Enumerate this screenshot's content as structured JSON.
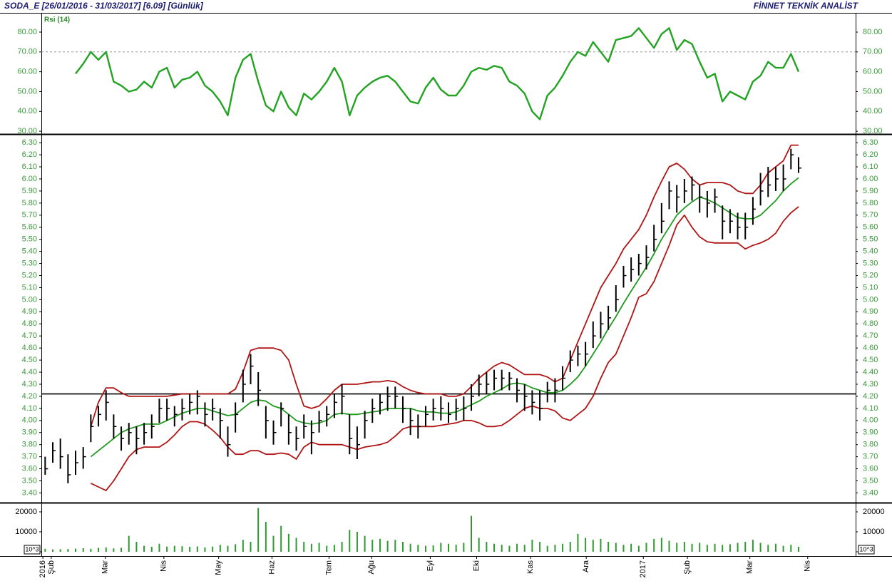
{
  "header": {
    "left": "SODA_E [26/01/2016 - 31/03/2017] [6.09] [Günlük]",
    "right": "FİNNET TEKNİK ANALİST"
  },
  "chart_data": [
    {
      "type": "line",
      "label": "Rsi (14)",
      "ylim": [
        28.6,
        89.7
      ],
      "reference_line": 70,
      "yticks": [
        {
          "value": 30,
          "label": "30.00"
        },
        {
          "value": 40,
          "label": "40.00"
        },
        {
          "value": 50,
          "label": "50.00"
        },
        {
          "value": 60,
          "label": "60.00"
        },
        {
          "value": 70,
          "label": "70.00"
        },
        {
          "value": 80,
          "label": "80.00"
        }
      ],
      "series": [
        {
          "color": "#22a322",
          "values": [
            null,
            null,
            null,
            null,
            59,
            64,
            70,
            66,
            70,
            55,
            53,
            50,
            51,
            55,
            52,
            60,
            62,
            52,
            56,
            57,
            60,
            53,
            50,
            45,
            38,
            57,
            66,
            69,
            55,
            43,
            40,
            50,
            42,
            38,
            49,
            46,
            50,
            55,
            62,
            55,
            38,
            48,
            52,
            55,
            57,
            58,
            55,
            50,
            45,
            44,
            52,
            57,
            51,
            48,
            48,
            53,
            60,
            62,
            61,
            63,
            62,
            55,
            53,
            49,
            40,
            36,
            48,
            52,
            58,
            65,
            70,
            68,
            75,
            70,
            65,
            76,
            77,
            78,
            82,
            77,
            72,
            79,
            82,
            71,
            76,
            74,
            65,
            57,
            59,
            45,
            50,
            48,
            46,
            55,
            58,
            65,
            62,
            62,
            69,
            60
          ]
        }
      ]
    },
    {
      "type": "hlc",
      "color": "#000000",
      "ylim": [
        3.32,
        6.36
      ],
      "reference_line": 4.22,
      "yticks": [
        {
          "value": 3.4,
          "label": "3.40"
        },
        {
          "value": 3.5,
          "label": "3.50"
        },
        {
          "value": 3.6,
          "label": "3.60"
        },
        {
          "value": 3.7,
          "label": "3.70"
        },
        {
          "value": 3.8,
          "label": "3.80"
        },
        {
          "value": 3.9,
          "label": "3.90"
        },
        {
          "value": 4.0,
          "label": "4.00"
        },
        {
          "value": 4.1,
          "label": "4.10"
        },
        {
          "value": 4.2,
          "label": "4.20"
        },
        {
          "value": 4.3,
          "label": "4.30"
        },
        {
          "value": 4.4,
          "label": "4.40"
        },
        {
          "value": 4.5,
          "label": "4.50"
        },
        {
          "value": 4.6,
          "label": "4.60"
        },
        {
          "value": 4.7,
          "label": "4.70"
        },
        {
          "value": 4.8,
          "label": "4.80"
        },
        {
          "value": 4.9,
          "label": "4.90"
        },
        {
          "value": 5.0,
          "label": "5.00"
        },
        {
          "value": 5.1,
          "label": "5.10"
        },
        {
          "value": 5.2,
          "label": "5.20"
        },
        {
          "value": 5.3,
          "label": "5.30"
        },
        {
          "value": 5.4,
          "label": "5.40"
        },
        {
          "value": 5.5,
          "label": "5.50"
        },
        {
          "value": 5.6,
          "label": "5.60"
        },
        {
          "value": 5.7,
          "label": "5.70"
        },
        {
          "value": 5.8,
          "label": "5.80"
        },
        {
          "value": 5.9,
          "label": "5.90"
        },
        {
          "value": 6.0,
          "label": "6.00"
        },
        {
          "value": 6.1,
          "label": "6.10"
        },
        {
          "value": 6.2,
          "label": "6.20"
        },
        {
          "value": 6.3,
          "label": "6.30"
        }
      ],
      "high": [
        3.7,
        3.82,
        3.85,
        3.72,
        3.75,
        3.78,
        4.05,
        4.12,
        4.25,
        4.05,
        3.95,
        3.98,
        3.95,
        3.98,
        4.05,
        4.18,
        4.18,
        4.12,
        4.18,
        4.22,
        4.25,
        4.15,
        4.18,
        4.1,
        3.95,
        4.15,
        4.42,
        4.55,
        4.4,
        4.12,
        4.0,
        4.15,
        4.05,
        3.95,
        4.05,
        4.0,
        4.08,
        4.12,
        4.22,
        4.3,
        4.05,
        3.95,
        4.08,
        4.18,
        4.22,
        4.28,
        4.28,
        4.2,
        4.1,
        4.05,
        4.12,
        4.18,
        4.2,
        4.15,
        4.18,
        4.2,
        4.3,
        4.38,
        4.4,
        4.42,
        4.42,
        4.4,
        4.35,
        4.3,
        4.25,
        4.25,
        4.32,
        4.35,
        4.45,
        4.58,
        4.62,
        4.65,
        4.82,
        4.9,
        4.95,
        5.12,
        5.28,
        5.35,
        5.38,
        5.45,
        5.62,
        5.8,
        5.98,
        5.95,
        6.0,
        6.02,
        5.95,
        5.9,
        5.92,
        5.78,
        5.75,
        5.72,
        5.72,
        5.85,
        6.05,
        6.1,
        6.1,
        6.12,
        6.25,
        6.18
      ],
      "low": [
        3.55,
        3.65,
        3.6,
        3.48,
        3.55,
        3.6,
        3.82,
        3.95,
        4.0,
        3.85,
        3.75,
        3.8,
        3.72,
        3.8,
        3.85,
        3.98,
        4.0,
        3.95,
        4.0,
        4.05,
        4.05,
        3.95,
        4.0,
        3.85,
        3.7,
        3.9,
        4.15,
        4.3,
        4.12,
        3.85,
        3.8,
        3.95,
        3.8,
        3.75,
        3.85,
        3.72,
        3.9,
        3.95,
        4.02,
        4.05,
        3.72,
        3.68,
        3.85,
        3.98,
        4.05,
        4.08,
        4.1,
        3.98,
        3.88,
        3.85,
        3.95,
        4.0,
        4.0,
        3.98,
        4.0,
        4.0,
        4.08,
        4.2,
        4.22,
        4.25,
        4.25,
        4.25,
        4.15,
        4.08,
        4.05,
        4.0,
        4.15,
        4.15,
        4.25,
        4.4,
        4.45,
        4.45,
        4.6,
        4.68,
        4.75,
        4.9,
        5.1,
        5.15,
        5.2,
        5.25,
        5.4,
        5.55,
        5.75,
        5.72,
        5.8,
        5.82,
        5.72,
        5.68,
        5.72,
        5.5,
        5.55,
        5.5,
        5.5,
        5.62,
        5.78,
        5.85,
        5.9,
        5.9,
        6.08,
        6.05
      ],
      "close": [
        3.6,
        3.75,
        3.7,
        3.55,
        3.65,
        3.7,
        3.95,
        4.05,
        4.15,
        3.95,
        3.85,
        3.9,
        3.85,
        3.9,
        3.95,
        4.1,
        4.1,
        4.05,
        4.1,
        4.15,
        4.2,
        4.05,
        4.1,
        4.0,
        3.8,
        4.05,
        4.3,
        4.45,
        4.25,
        4.0,
        3.9,
        4.1,
        3.9,
        3.85,
        3.95,
        3.9,
        4.0,
        4.05,
        4.15,
        4.2,
        3.85,
        3.8,
        4.0,
        4.1,
        4.15,
        4.2,
        4.2,
        4.1,
        4.0,
        3.95,
        4.05,
        4.1,
        4.1,
        4.05,
        4.1,
        4.1,
        4.2,
        4.3,
        4.3,
        4.35,
        4.35,
        4.35,
        4.25,
        4.2,
        4.15,
        4.1,
        4.25,
        4.25,
        4.35,
        4.5,
        4.55,
        4.55,
        4.7,
        4.8,
        4.85,
        5.0,
        5.2,
        5.25,
        5.3,
        5.35,
        5.5,
        5.65,
        5.9,
        5.85,
        5.9,
        5.95,
        5.85,
        5.8,
        5.85,
        5.65,
        5.65,
        5.6,
        5.6,
        5.75,
        5.9,
        5.95,
        6.0,
        6.0,
        6.2,
        6.09
      ],
      "bands": [
        {
          "color": "#b01515",
          "values": [
            null,
            null,
            null,
            null,
            null,
            null,
            3.95,
            4.15,
            4.27,
            4.27,
            4.23,
            4.2,
            4.2,
            4.2,
            4.2,
            4.2,
            4.2,
            4.21,
            4.22,
            4.22,
            4.22,
            4.22,
            4.22,
            4.22,
            4.22,
            4.26,
            4.4,
            4.58,
            4.6,
            4.6,
            4.6,
            4.58,
            4.5,
            4.3,
            4.12,
            4.1,
            4.12,
            4.18,
            4.25,
            4.3,
            4.3,
            4.3,
            4.31,
            4.32,
            4.32,
            4.33,
            4.32,
            4.28,
            4.25,
            4.23,
            4.22,
            4.22,
            4.22,
            4.2,
            4.2,
            4.22,
            4.28,
            4.35,
            4.4,
            4.45,
            4.48,
            4.46,
            4.42,
            4.38,
            4.38,
            4.38,
            4.36,
            4.32,
            4.35,
            4.5,
            4.65,
            4.8,
            4.95,
            5.1,
            5.2,
            5.3,
            5.42,
            5.5,
            5.58,
            5.7,
            5.85,
            5.98,
            6.1,
            6.13,
            6.08,
            6.0,
            5.95,
            5.97,
            5.97,
            5.97,
            5.95,
            5.9,
            5.88,
            5.88,
            5.95,
            6.05,
            6.1,
            6.15,
            6.28,
            6.28
          ]
        },
        {
          "color": "#1f9a1f",
          "values": [
            null,
            null,
            null,
            null,
            null,
            null,
            3.7,
            3.75,
            3.8,
            3.85,
            3.9,
            3.93,
            3.95,
            3.97,
            3.97,
            3.97,
            4.0,
            4.03,
            4.06,
            4.08,
            4.1,
            4.1,
            4.08,
            4.06,
            4.04,
            4.05,
            4.1,
            4.15,
            4.17,
            4.16,
            4.12,
            4.1,
            4.05,
            4.0,
            3.98,
            3.97,
            3.98,
            4.0,
            4.05,
            4.06,
            4.05,
            4.05,
            4.06,
            4.07,
            4.08,
            4.1,
            4.1,
            4.1,
            4.1,
            4.08,
            4.07,
            4.07,
            4.06,
            4.06,
            4.07,
            4.1,
            4.13,
            4.16,
            4.2,
            4.23,
            4.26,
            4.3,
            4.31,
            4.3,
            4.27,
            4.25,
            4.23,
            4.23,
            4.25,
            4.3,
            4.36,
            4.45,
            4.55,
            4.65,
            4.76,
            4.86,
            4.97,
            5.07,
            5.17,
            5.27,
            5.38,
            5.5,
            5.6,
            5.7,
            5.76,
            5.81,
            5.85,
            5.83,
            5.8,
            5.76,
            5.72,
            5.68,
            5.67,
            5.67,
            5.7,
            5.76,
            5.82,
            5.9,
            5.96,
            6.01
          ]
        },
        {
          "color": "#b01515",
          "values": [
            null,
            null,
            null,
            null,
            null,
            null,
            3.48,
            3.45,
            3.42,
            3.5,
            3.6,
            3.7,
            3.76,
            3.78,
            3.78,
            3.78,
            3.82,
            3.88,
            3.95,
            3.99,
            3.99,
            3.97,
            3.92,
            3.86,
            3.78,
            3.72,
            3.72,
            3.75,
            3.75,
            3.72,
            3.72,
            3.73,
            3.72,
            3.68,
            3.78,
            3.82,
            3.8,
            3.8,
            3.8,
            3.8,
            3.78,
            3.76,
            3.78,
            3.79,
            3.8,
            3.82,
            3.87,
            3.93,
            3.95,
            3.95,
            3.95,
            3.95,
            3.96,
            3.97,
            3.98,
            4.0,
            4.0,
            3.98,
            3.95,
            3.95,
            3.96,
            4.0,
            4.05,
            4.1,
            4.12,
            4.1,
            4.1,
            4.08,
            4.02,
            4.0,
            4.05,
            4.1,
            4.2,
            4.35,
            4.48,
            4.55,
            4.7,
            4.85,
            5.02,
            5.05,
            5.15,
            5.3,
            5.45,
            5.62,
            5.7,
            5.6,
            5.52,
            5.48,
            5.47,
            5.47,
            5.47,
            5.47,
            5.42,
            5.45,
            5.47,
            5.5,
            5.55,
            5.65,
            5.72,
            5.77
          ]
        }
      ]
    },
    {
      "type": "bar",
      "color": "#2e9a2e",
      "unit_label": "10^3",
      "ylim": [
        -2140,
        24290
      ],
      "yticks": [
        0,
        10000,
        20000
      ],
      "values": [
        1500,
        1200,
        1300,
        1400,
        1600,
        1800,
        1500,
        2000,
        2200,
        1700,
        2000,
        8000,
        5000,
        3000,
        2500,
        4000,
        2600,
        3000,
        2800,
        2500,
        2700,
        2200,
        2600,
        3500,
        3000,
        3800,
        6000,
        5000,
        22000,
        15000,
        8000,
        13000,
        9000,
        7000,
        5000,
        4000,
        4500,
        3000,
        3500,
        5000,
        11000,
        10000,
        8000,
        6000,
        6500,
        5500,
        6000,
        5000,
        4000,
        3500,
        3000,
        3200,
        4500,
        4000,
        3500,
        4500,
        18000,
        7000,
        5000,
        4000,
        3500,
        3000,
        4000,
        3500,
        6000,
        5000,
        3000,
        3500,
        4000,
        5000,
        9000,
        7000,
        6000,
        6500,
        5000,
        4500,
        3500,
        4000,
        3000,
        4500,
        6500,
        7000,
        5500,
        4500,
        5000,
        4000,
        4500,
        3500,
        4000,
        3500,
        3800,
        4500,
        5000,
        6000,
        4500,
        3500,
        4000,
        3000,
        3500,
        2500
      ],
      "xlim": [
        -0.5,
        106.5
      ],
      "xticks": [
        {
          "value": -0.3,
          "label": "2016"
        },
        {
          "value": 0.8,
          "label": "Şub"
        },
        {
          "value": 7.9,
          "label": "Mar"
        },
        {
          "value": 15.6,
          "label": "Nis"
        },
        {
          "value": 22.8,
          "label": "May"
        },
        {
          "value": 29.8,
          "label": "Haz"
        },
        {
          "value": 37.3,
          "label": "Tem"
        },
        {
          "value": 42.9,
          "label": "Ağu"
        },
        {
          "value": 50.6,
          "label": "Eyl"
        },
        {
          "value": 56.7,
          "label": "Eki"
        },
        {
          "value": 63.8,
          "label": "Kas"
        },
        {
          "value": 71.1,
          "label": "Ara"
        },
        {
          "value": 78.6,
          "label": "2017"
        },
        {
          "value": 84.4,
          "label": "Şub"
        },
        {
          "value": 92.6,
          "label": "Mar"
        },
        {
          "value": 100.2,
          "label": "Nis"
        }
      ]
    }
  ]
}
